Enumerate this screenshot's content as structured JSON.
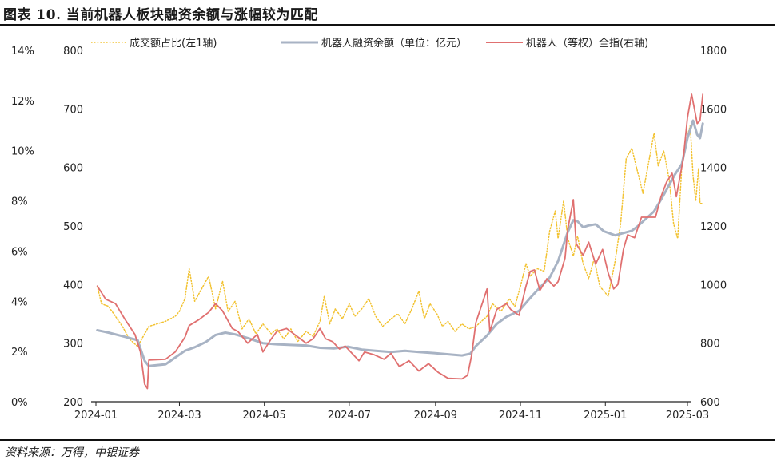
{
  "figure": {
    "title": "图表 10. 当前机器人板块融资余额与涨幅较为匹配",
    "source": "资料来源：万得，中银证券"
  },
  "chart_data": {
    "type": "line",
    "x_ticks": [
      "2024-01",
      "2024-03",
      "2024-05",
      "2024-07",
      "2024-09",
      "2024-11",
      "2025-01",
      "2025-03"
    ],
    "left1_axis": {
      "ticks": [
        "0%",
        "2%",
        "4%",
        "6%",
        "8%",
        "10%",
        "12%",
        "14%"
      ],
      "range": [
        0,
        14
      ],
      "unit": "%"
    },
    "left2_axis": {
      "ticks": [
        "200",
        "300",
        "400",
        "500",
        "600",
        "700",
        "800"
      ],
      "range": [
        200,
        800
      ]
    },
    "right_axis": {
      "ticks": [
        "600",
        "800",
        "1000",
        "1200",
        "1400",
        "1600",
        "1800"
      ],
      "range": [
        600,
        1800
      ]
    },
    "legend_position": "top",
    "grid": false,
    "series": [
      {
        "name": "成交额占比(左1轴)",
        "axis": "left1",
        "color": "#F2C230",
        "style": "dotted",
        "points": [
          [
            "2024-01-02",
            4.6
          ],
          [
            "2024-01-05",
            3.9
          ],
          [
            "2024-01-10",
            3.8
          ],
          [
            "2024-01-15",
            3.4
          ],
          [
            "2024-01-20",
            3.0
          ],
          [
            "2024-01-25",
            2.5
          ],
          [
            "2024-01-31",
            2.2
          ],
          [
            "2024-02-05",
            2.7
          ],
          [
            "2024-02-08",
            3.0
          ],
          [
            "2024-02-20",
            3.2
          ],
          [
            "2024-02-27",
            3.4
          ],
          [
            "2024-03-01",
            3.6
          ],
          [
            "2024-03-05",
            4.1
          ],
          [
            "2024-03-08",
            5.3
          ],
          [
            "2024-03-12",
            4.0
          ],
          [
            "2024-03-18",
            4.6
          ],
          [
            "2024-03-22",
            5.0
          ],
          [
            "2024-03-27",
            3.7
          ],
          [
            "2024-04-01",
            4.8
          ],
          [
            "2024-04-05",
            3.6
          ],
          [
            "2024-04-10",
            4.0
          ],
          [
            "2024-04-15",
            2.9
          ],
          [
            "2024-04-20",
            3.3
          ],
          [
            "2024-04-25",
            2.7
          ],
          [
            "2024-04-30",
            3.1
          ],
          [
            "2024-05-06",
            2.7
          ],
          [
            "2024-05-10",
            2.9
          ],
          [
            "2024-05-15",
            2.5
          ],
          [
            "2024-05-20",
            2.9
          ],
          [
            "2024-05-25",
            2.4
          ],
          [
            "2024-05-31",
            2.8
          ],
          [
            "2024-06-05",
            2.6
          ],
          [
            "2024-06-10",
            3.2
          ],
          [
            "2024-06-13",
            4.2
          ],
          [
            "2024-06-17",
            3.1
          ],
          [
            "2024-06-21",
            3.7
          ],
          [
            "2024-06-26",
            3.3
          ],
          [
            "2024-07-01",
            3.9
          ],
          [
            "2024-07-05",
            3.4
          ],
          [
            "2024-07-10",
            3.7
          ],
          [
            "2024-07-15",
            4.1
          ],
          [
            "2024-07-20",
            3.4
          ],
          [
            "2024-07-25",
            3.0
          ],
          [
            "2024-07-31",
            3.3
          ],
          [
            "2024-08-05",
            3.5
          ],
          [
            "2024-08-10",
            3.1
          ],
          [
            "2024-08-15",
            3.7
          ],
          [
            "2024-08-20",
            4.4
          ],
          [
            "2024-08-24",
            3.3
          ],
          [
            "2024-08-28",
            3.9
          ],
          [
            "2024-09-02",
            3.5
          ],
          [
            "2024-09-06",
            3.0
          ],
          [
            "2024-09-10",
            3.2
          ],
          [
            "2024-09-15",
            2.8
          ],
          [
            "2024-09-20",
            3.1
          ],
          [
            "2024-09-25",
            2.9
          ],
          [
            "2024-09-30",
            3.0
          ],
          [
            "2024-10-08",
            3.4
          ],
          [
            "2024-10-12",
            3.9
          ],
          [
            "2024-10-18",
            3.6
          ],
          [
            "2024-10-24",
            4.1
          ],
          [
            "2024-10-28",
            3.8
          ],
          [
            "2024-11-01",
            4.6
          ],
          [
            "2024-11-05",
            5.5
          ],
          [
            "2024-11-08",
            5.0
          ],
          [
            "2024-11-13",
            5.3
          ],
          [
            "2024-11-18",
            5.2
          ],
          [
            "2024-11-22",
            6.8
          ],
          [
            "2024-11-26",
            7.6
          ],
          [
            "2024-11-28",
            6.5
          ],
          [
            "2024-12-02",
            8.0
          ],
          [
            "2024-12-05",
            6.5
          ],
          [
            "2024-12-09",
            5.8
          ],
          [
            "2024-12-12",
            6.6
          ],
          [
            "2024-12-16",
            5.5
          ],
          [
            "2024-12-20",
            4.9
          ],
          [
            "2024-12-24",
            5.7
          ],
          [
            "2024-12-28",
            4.6
          ],
          [
            "2025-01-03",
            4.2
          ],
          [
            "2025-01-08",
            5.6
          ],
          [
            "2025-01-12",
            7.1
          ],
          [
            "2025-01-16",
            9.7
          ],
          [
            "2025-01-20",
            10.1
          ],
          [
            "2025-01-24",
            9.2
          ],
          [
            "2025-01-28",
            8.3
          ],
          [
            "2025-02-05",
            10.7
          ],
          [
            "2025-02-08",
            9.4
          ],
          [
            "2025-02-12",
            10.0
          ],
          [
            "2025-02-16",
            8.8
          ],
          [
            "2025-02-19",
            7.1
          ],
          [
            "2025-02-22",
            6.5
          ],
          [
            "2025-02-25",
            9.4
          ],
          [
            "2025-03-01",
            10.6
          ],
          [
            "2025-03-03",
            11.0
          ],
          [
            "2025-03-05",
            9.0
          ],
          [
            "2025-03-07",
            8.0
          ],
          [
            "2025-03-09",
            9.3
          ],
          [
            "2025-03-10",
            7.9
          ],
          [
            "2025-03-12",
            7.9
          ]
        ]
      },
      {
        "name": "机器人融资余额（单位：亿元）",
        "axis": "left2",
        "color": "#A8B3C4",
        "style": "solid",
        "points": [
          [
            "2024-01-02",
            322
          ],
          [
            "2024-01-10",
            318
          ],
          [
            "2024-01-20",
            312
          ],
          [
            "2024-01-31",
            305
          ],
          [
            "2024-02-05",
            270
          ],
          [
            "2024-02-08",
            261
          ],
          [
            "2024-02-20",
            264
          ],
          [
            "2024-02-28",
            277
          ],
          [
            "2024-03-05",
            287
          ],
          [
            "2024-03-12",
            293
          ],
          [
            "2024-03-20",
            302
          ],
          [
            "2024-03-27",
            314
          ],
          [
            "2024-04-03",
            318
          ],
          [
            "2024-04-10",
            315
          ],
          [
            "2024-04-20",
            308
          ],
          [
            "2024-04-30",
            300
          ],
          [
            "2024-05-10",
            298
          ],
          [
            "2024-05-20",
            297
          ],
          [
            "2024-05-31",
            296
          ],
          [
            "2024-06-10",
            292
          ],
          [
            "2024-06-20",
            291
          ],
          [
            "2024-06-30",
            294
          ],
          [
            "2024-07-10",
            289
          ],
          [
            "2024-07-20",
            287
          ],
          [
            "2024-07-31",
            285
          ],
          [
            "2024-08-10",
            287
          ],
          [
            "2024-08-20",
            285
          ],
          [
            "2024-08-31",
            283
          ],
          [
            "2024-09-10",
            281
          ],
          [
            "2024-09-20",
            279
          ],
          [
            "2024-09-26",
            282
          ],
          [
            "2024-09-30",
            295
          ],
          [
            "2024-10-08",
            313
          ],
          [
            "2024-10-15",
            333
          ],
          [
            "2024-10-22",
            345
          ],
          [
            "2024-10-31",
            355
          ],
          [
            "2024-11-08",
            377
          ],
          [
            "2024-11-15",
            395
          ],
          [
            "2024-11-22",
            412
          ],
          [
            "2024-11-28",
            440
          ],
          [
            "2024-12-05",
            490
          ],
          [
            "2024-12-09",
            510
          ],
          [
            "2024-12-12",
            508
          ],
          [
            "2024-12-16",
            498
          ],
          [
            "2024-12-20",
            501
          ],
          [
            "2024-12-25",
            503
          ],
          [
            "2024-12-31",
            491
          ],
          [
            "2025-01-08",
            484
          ],
          [
            "2025-01-14",
            488
          ],
          [
            "2025-01-20",
            492
          ],
          [
            "2025-01-24",
            499
          ],
          [
            "2025-02-05",
            525
          ],
          [
            "2025-02-10",
            545
          ],
          [
            "2025-02-14",
            562
          ],
          [
            "2025-02-20",
            588
          ],
          [
            "2025-02-25",
            606
          ],
          [
            "2025-03-01",
            650
          ],
          [
            "2025-03-05",
            680
          ],
          [
            "2025-03-08",
            656
          ],
          [
            "2025-03-10",
            650
          ],
          [
            "2025-03-12",
            675
          ]
        ]
      },
      {
        "name": "机器人（等权）全指(右轴)",
        "axis": "right",
        "color": "#E07070",
        "style": "solid",
        "points": [
          [
            "2024-01-02",
            995
          ],
          [
            "2024-01-08",
            950
          ],
          [
            "2024-01-15",
            935
          ],
          [
            "2024-01-22",
            880
          ],
          [
            "2024-01-29",
            830
          ],
          [
            "2024-02-02",
            770
          ],
          [
            "2024-02-05",
            660
          ],
          [
            "2024-02-07",
            645
          ],
          [
            "2024-02-08",
            742
          ],
          [
            "2024-02-20",
            745
          ],
          [
            "2024-02-27",
            770
          ],
          [
            "2024-03-05",
            820
          ],
          [
            "2024-03-08",
            860
          ],
          [
            "2024-03-15",
            880
          ],
          [
            "2024-03-22",
            905
          ],
          [
            "2024-03-27",
            935
          ],
          [
            "2024-04-01",
            910
          ],
          [
            "2024-04-08",
            850
          ],
          [
            "2024-04-12",
            840
          ],
          [
            "2024-04-19",
            800
          ],
          [
            "2024-04-26",
            830
          ],
          [
            "2024-04-30",
            770
          ],
          [
            "2024-05-06",
            815
          ],
          [
            "2024-05-10",
            840
          ],
          [
            "2024-05-17",
            850
          ],
          [
            "2024-05-24",
            825
          ],
          [
            "2024-05-31",
            800
          ],
          [
            "2024-06-05",
            815
          ],
          [
            "2024-06-10",
            850
          ],
          [
            "2024-06-14",
            815
          ],
          [
            "2024-06-19",
            805
          ],
          [
            "2024-06-24",
            780
          ],
          [
            "2024-06-28",
            790
          ],
          [
            "2024-07-03",
            765
          ],
          [
            "2024-07-08",
            740
          ],
          [
            "2024-07-12",
            770
          ],
          [
            "2024-07-19",
            760
          ],
          [
            "2024-07-26",
            745
          ],
          [
            "2024-07-31",
            765
          ],
          [
            "2024-08-06",
            720
          ],
          [
            "2024-08-13",
            740
          ],
          [
            "2024-08-20",
            705
          ],
          [
            "2024-08-27",
            730
          ],
          [
            "2024-09-03",
            700
          ],
          [
            "2024-09-10",
            680
          ],
          [
            "2024-09-20",
            678
          ],
          [
            "2024-09-24",
            690
          ],
          [
            "2024-09-27",
            760
          ],
          [
            "2024-09-30",
            870
          ],
          [
            "2024-10-08",
            985
          ],
          [
            "2024-10-10",
            840
          ],
          [
            "2024-10-15",
            915
          ],
          [
            "2024-10-22",
            935
          ],
          [
            "2024-10-25",
            915
          ],
          [
            "2024-10-31",
            895
          ],
          [
            "2024-11-05",
            995
          ],
          [
            "2024-11-08",
            1045
          ],
          [
            "2024-11-11",
            1050
          ],
          [
            "2024-11-15",
            980
          ],
          [
            "2024-11-20",
            1020
          ],
          [
            "2024-11-25",
            995
          ],
          [
            "2024-11-28",
            1010
          ],
          [
            "2024-12-03",
            1090
          ],
          [
            "2024-12-05",
            1190
          ],
          [
            "2024-12-09",
            1290
          ],
          [
            "2024-12-11",
            1140
          ],
          [
            "2024-12-16",
            1100
          ],
          [
            "2024-12-20",
            1145
          ],
          [
            "2024-12-25",
            1070
          ],
          [
            "2024-12-30",
            1120
          ],
          [
            "2025-01-03",
            1040
          ],
          [
            "2025-01-07",
            985
          ],
          [
            "2025-01-10",
            1000
          ],
          [
            "2025-01-14",
            1120
          ],
          [
            "2025-01-17",
            1170
          ],
          [
            "2025-01-22",
            1160
          ],
          [
            "2025-01-27",
            1230
          ],
          [
            "2025-02-06",
            1230
          ],
          [
            "2025-02-10",
            1300
          ],
          [
            "2025-02-14",
            1350
          ],
          [
            "2025-02-18",
            1380
          ],
          [
            "2025-02-21",
            1300
          ],
          [
            "2025-02-26",
            1430
          ],
          [
            "2025-03-01",
            1570
          ],
          [
            "2025-03-04",
            1650
          ],
          [
            "2025-03-06",
            1600
          ],
          [
            "2025-03-08",
            1550
          ],
          [
            "2025-03-10",
            1560
          ],
          [
            "2025-03-12",
            1650
          ]
        ]
      }
    ]
  }
}
